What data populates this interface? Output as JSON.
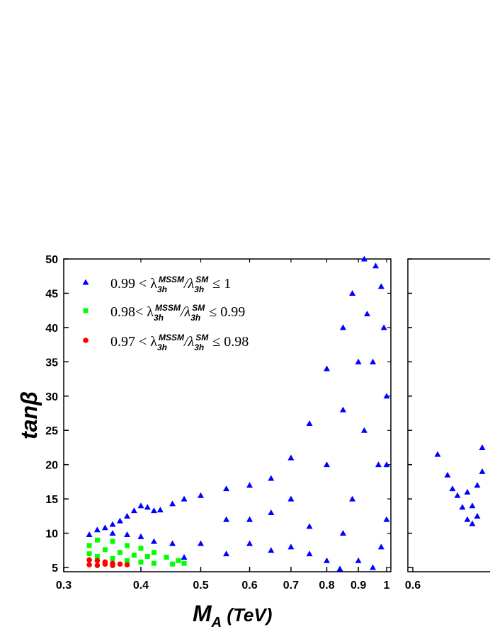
{
  "chart_data": [
    {
      "type": "scatter",
      "title": "",
      "xlabel": "M_A (TeV)",
      "ylabel": "tanβ",
      "xlim": [
        0.3,
        1.0
      ],
      "ylim": [
        4.5,
        50
      ],
      "xscale": "log",
      "x_ticks": [
        0.3,
        0.4,
        0.5,
        0.6,
        0.7,
        0.8,
        0.9,
        1
      ],
      "x_tick_labels": [
        "0.3",
        "0.4",
        "0.5",
        "0.6",
        "0.7",
        "0.8",
        "0.9",
        "1"
      ],
      "y_ticks": [
        5,
        10,
        15,
        20,
        25,
        30,
        35,
        40,
        45,
        50
      ],
      "y_tick_labels": [
        "5",
        "10",
        "15",
        "20",
        "25",
        "30",
        "35",
        "40",
        "45",
        "50"
      ],
      "legend_position": "top-left",
      "series": [
        {
          "name": "0.99 < λ_3h^MSSM/λ_3h^SM ≤ 1",
          "marker": "triangle",
          "color": "#0000ff",
          "points": [
            [
              0.33,
              9.8
            ],
            [
              0.34,
              10.5
            ],
            [
              0.35,
              10.8
            ],
            [
              0.36,
              11.3
            ],
            [
              0.37,
              11.8
            ],
            [
              0.38,
              12.5
            ],
            [
              0.39,
              13.3
            ],
            [
              0.4,
              14.0
            ],
            [
              0.41,
              13.8
            ],
            [
              0.42,
              13.3
            ],
            [
              0.43,
              13.4
            ],
            [
              0.45,
              14.3
            ],
            [
              0.47,
              15.0
            ],
            [
              0.5,
              15.5
            ],
            [
              0.55,
              16.5
            ],
            [
              0.6,
              17.0
            ],
            [
              0.65,
              18.0
            ],
            [
              0.7,
              21.0
            ],
            [
              0.75,
              26.0
            ],
            [
              0.8,
              34.0
            ],
            [
              0.85,
              40.0
            ],
            [
              0.88,
              45.0
            ],
            [
              0.92,
              50.0
            ],
            [
              0.96,
              49.0
            ],
            [
              0.98,
              46.0
            ],
            [
              0.99,
              40.0
            ],
            [
              1.0,
              30.0
            ],
            [
              1.0,
              20.0
            ],
            [
              1.0,
              12.0
            ],
            [
              0.98,
              8.0
            ],
            [
              0.95,
              5.0
            ],
            [
              0.9,
              6.0
            ],
            [
              0.84,
              4.8
            ],
            [
              0.8,
              6.0
            ],
            [
              0.75,
              7.0
            ],
            [
              0.7,
              8.0
            ],
            [
              0.65,
              7.5
            ],
            [
              0.6,
              8.5
            ],
            [
              0.55,
              7.0
            ],
            [
              0.5,
              8.5
            ],
            [
              0.47,
              6.5
            ],
            [
              0.45,
              8.5
            ],
            [
              0.42,
              8.8
            ],
            [
              0.4,
              9.5
            ],
            [
              0.38,
              9.8
            ],
            [
              0.36,
              10.0
            ],
            [
              0.6,
              12.0
            ],
            [
              0.7,
              15.0
            ],
            [
              0.8,
              20.0
            ],
            [
              0.85,
              28.0
            ],
            [
              0.9,
              35.0
            ],
            [
              0.93,
              42.0
            ],
            [
              0.88,
              15.0
            ],
            [
              0.92,
              25.0
            ],
            [
              0.75,
              11.0
            ],
            [
              0.65,
              13.0
            ],
            [
              0.55,
              12.0
            ],
            [
              0.95,
              35.0
            ],
            [
              0.97,
              20.0
            ],
            [
              0.85,
              10.0
            ]
          ]
        },
        {
          "name": "0.98< λ_3h^MSSM/λ_3h^SM ≤ 0.99",
          "marker": "square",
          "color": "#00ff00",
          "points": [
            [
              0.33,
              8.2
            ],
            [
              0.34,
              9.0
            ],
            [
              0.36,
              8.8
            ],
            [
              0.38,
              8.2
            ],
            [
              0.4,
              7.8
            ],
            [
              0.42,
              7.2
            ],
            [
              0.44,
              6.5
            ],
            [
              0.46,
              6.0
            ],
            [
              0.47,
              5.6
            ],
            [
              0.45,
              5.5
            ],
            [
              0.42,
              5.6
            ],
            [
              0.4,
              5.8
            ],
            [
              0.38,
              6.0
            ],
            [
              0.36,
              6.3
            ],
            [
              0.34,
              6.6
            ],
            [
              0.33,
              7.0
            ],
            [
              0.35,
              7.6
            ],
            [
              0.37,
              7.2
            ],
            [
              0.39,
              6.8
            ],
            [
              0.41,
              6.6
            ]
          ]
        },
        {
          "name": "0.97 < λ_3h^MSSM/λ_3h^SM ≤ 0.98",
          "marker": "circle",
          "color": "#ff0000",
          "points": [
            [
              0.33,
              5.4
            ],
            [
              0.33,
              6.1
            ],
            [
              0.34,
              6.0
            ],
            [
              0.35,
              5.8
            ],
            [
              0.36,
              5.6
            ],
            [
              0.37,
              5.5
            ],
            [
              0.38,
              5.4
            ],
            [
              0.36,
              5.3
            ],
            [
              0.34,
              5.3
            ],
            [
              0.35,
              5.5
            ]
          ]
        }
      ]
    },
    {
      "type": "scatter",
      "title": "",
      "xlabel": "",
      "ylabel": "",
      "x_tick_labels": [
        "0.6"
      ],
      "ylim": [
        4.5,
        50
      ],
      "series": [
        {
          "name": "",
          "marker": "triangle",
          "color": "#0000ff",
          "points": [
            [
              0.65,
              21.5
            ],
            [
              0.67,
              18.5
            ],
            [
              0.68,
              16.5
            ],
            [
              0.69,
              15.5
            ],
            [
              0.7,
              13.8
            ],
            [
              0.71,
              12.0
            ],
            [
              0.72,
              11.4
            ],
            [
              0.73,
              17.0
            ],
            [
              0.74,
              22.5
            ],
            [
              0.75,
              20.0
            ],
            [
              0.74,
              19.0
            ],
            [
              0.73,
              12.5
            ],
            [
              0.72,
              14.0
            ],
            [
              0.71,
              16.0
            ],
            [
              0.75,
              16.8
            ]
          ]
        }
      ]
    }
  ]
}
